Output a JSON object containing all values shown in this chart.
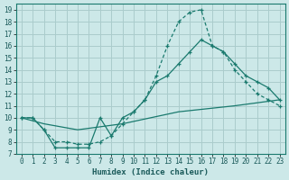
{
  "xlabel": "Humidex (Indice chaleur)",
  "bg_color": "#cce8e8",
  "grid_color": "#aacccc",
  "line_color": "#1a7a6e",
  "xlim": [
    -0.5,
    23.5
  ],
  "ylim": [
    7,
    19.5
  ],
  "xticks": [
    0,
    1,
    2,
    3,
    4,
    5,
    6,
    7,
    8,
    9,
    10,
    11,
    12,
    13,
    14,
    15,
    16,
    17,
    18,
    19,
    20,
    21,
    22,
    23
  ],
  "yticks": [
    7,
    8,
    9,
    10,
    11,
    12,
    13,
    14,
    15,
    16,
    17,
    18,
    19
  ],
  "line1_x": [
    0,
    1,
    2,
    3,
    4,
    5,
    6,
    7,
    8,
    9,
    10,
    11,
    12,
    13,
    14,
    15,
    16,
    17,
    18,
    19,
    20,
    21,
    22,
    23
  ],
  "line1_y": [
    10,
    10,
    9,
    7.5,
    7.5,
    7.5,
    7.5,
    10,
    8.5,
    10,
    10.5,
    11.5,
    13,
    13.5,
    14.5,
    15.5,
    16.5,
    16,
    15.5,
    14.5,
    13.5,
    13,
    12.5,
    11.5
  ],
  "line2_x": [
    0,
    1,
    2,
    3,
    4,
    5,
    6,
    7,
    8,
    9,
    10,
    11,
    12,
    13,
    14,
    15,
    16,
    17,
    18,
    19,
    20,
    21,
    22,
    23
  ],
  "line2_y": [
    10,
    10,
    9,
    8,
    8,
    7.8,
    7.8,
    8,
    8.5,
    9.5,
    10.5,
    11.5,
    13.5,
    16,
    18,
    18.8,
    19,
    16,
    15.5,
    14,
    13,
    12,
    11.5,
    11
  ],
  "line3_x": [
    0,
    2,
    5,
    9,
    14,
    19,
    23
  ],
  "line3_y": [
    10,
    9.5,
    9,
    9.5,
    10.5,
    11,
    11.5
  ]
}
